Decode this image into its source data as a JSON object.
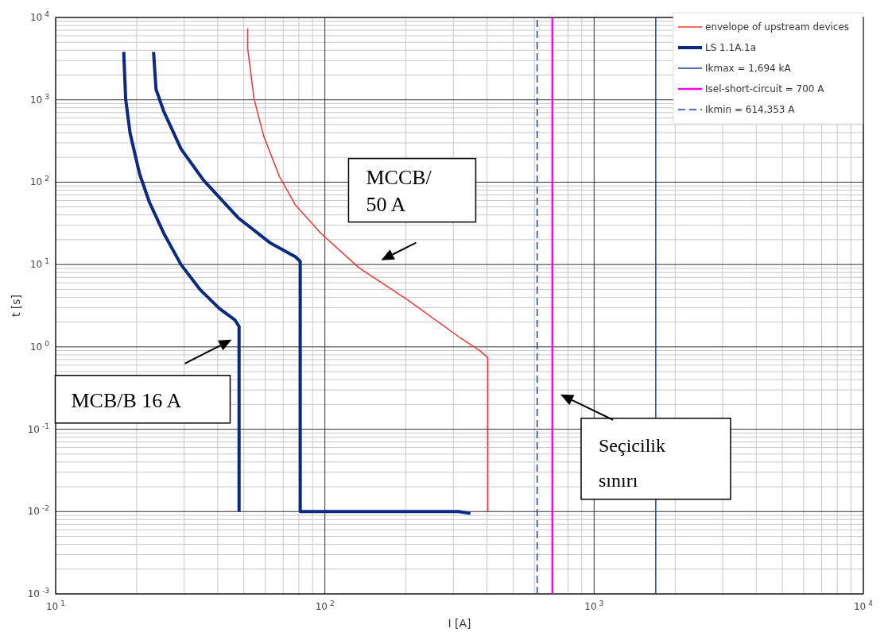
{
  "chart_data": {
    "type": "line",
    "xlabel": "I [A]",
    "ylabel": "t [s]",
    "log": "xy",
    "grid": true,
    "legend": "top right",
    "xlim": [
      10,
      10000
    ],
    "ylim": [
      0.001,
      10000
    ],
    "xticks": [
      {
        "value": 10,
        "label": "10$^{1}$"
      },
      {
        "value": 100,
        "label": "10$^{2}$"
      },
      {
        "value": 1000,
        "label": "10$^{3}$"
      },
      {
        "value": 10000,
        "label": "10$^{4}$"
      }
    ],
    "yticks": [
      {
        "value": 0.001,
        "label": "10$^{-3}$"
      },
      {
        "value": 0.01,
        "label": "10$^{-2}$"
      },
      {
        "value": 0.1,
        "label": "10$^{-1}$"
      },
      {
        "value": 1,
        "label": "10$^{0}$"
      },
      {
        "value": 10,
        "label": "10$^{1}$"
      },
      {
        "value": 100,
        "label": "10$^{2}$"
      },
      {
        "value": 1000,
        "label": "10$^{3}$"
      },
      {
        "value": 10000,
        "label": "10$^{4}$"
      }
    ],
    "series": [
      {
        "name": "envelope of upstream devices",
        "color": "#ff3030",
        "x": [
          51.7,
          51.7,
          54.6,
          59.3,
          67.9,
          77.8,
          96.6,
          134,
          201,
          319,
          376,
          403,
          403
        ],
        "values": [
          7360,
          4170,
          1020,
          361,
          116,
          52.6,
          24,
          9.1,
          3.8,
          1.28,
          0.9,
          0.74,
          0.01
        ]
      },
      {
        "name": "LS 1.1A.1a",
        "color": "#0a2a85",
        "x": [
          17.9,
          18.2,
          18.9,
          20.5,
          22.3,
          25.2,
          29.2,
          34.4,
          40.5,
          46.4,
          48,
          48
        ],
        "values": [
          3820,
          1020,
          393,
          126,
          57,
          24,
          10,
          4.96,
          2.93,
          2.11,
          1.77,
          0.01
        ]
      },
      {
        "color": "#0a2a85",
        "x": [
          23.1,
          23.6,
          25.2,
          29.2,
          35.4,
          47.6,
          62.5,
          77.8,
          81,
          81,
          313,
          347
        ],
        "values": [
          3820,
          1340,
          725,
          254,
          106,
          37,
          18.4,
          12.4,
          10.9,
          0.01,
          0.01,
          0.0095
        ]
      },
      {
        "name": "Ikmax = 1,694 kA",
        "color": "#2040a0",
        "x": [
          1694,
          1694
        ],
        "values": [
          0.001,
          10000
        ]
      },
      {
        "name": "Isel-short-circuit = 700 A",
        "color": "#ff00ff",
        "x": [
          700,
          700
        ],
        "values": [
          0.001,
          10000
        ]
      },
      {
        "name": "Ikmin = 614,353 A",
        "color": "#2040a0",
        "line_style": "dashed",
        "x": [
          614.353,
          614.353
        ],
        "values": [
          0.001,
          10000
        ]
      }
    ],
    "annotations": [
      "MCCB/\n50 A",
      "MCB/B 16 A",
      "Seçicilik\nsınırı"
    ]
  }
}
